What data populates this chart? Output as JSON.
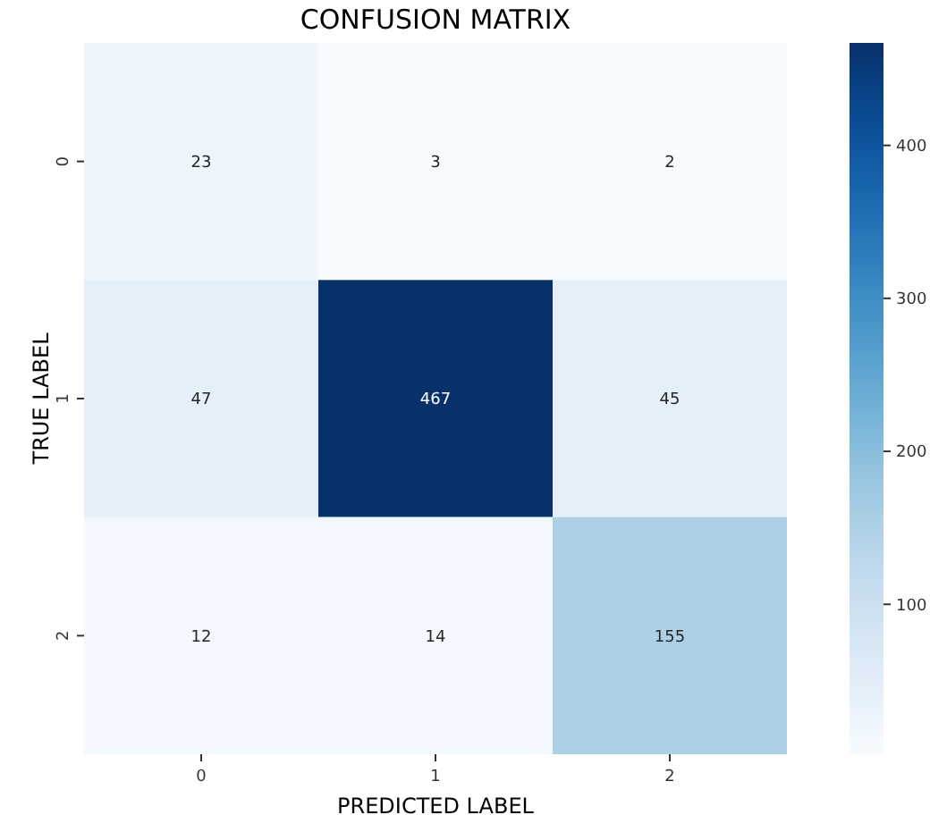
{
  "chart_data": {
    "type": "heatmap",
    "title": "CONFUSION MATRIX",
    "xlabel": "PREDICTED LABEL",
    "ylabel": "TRUE LABEL",
    "categories": [
      "0",
      "1",
      "2"
    ],
    "y_categories": [
      "0",
      "1",
      "2"
    ],
    "cells": [
      [
        23,
        3,
        2
      ],
      [
        47,
        467,
        45
      ],
      [
        12,
        14,
        155
      ]
    ],
    "data_labels": true,
    "clim": [
      2,
      467
    ],
    "cticks": [
      100,
      200,
      300,
      400
    ]
  }
}
